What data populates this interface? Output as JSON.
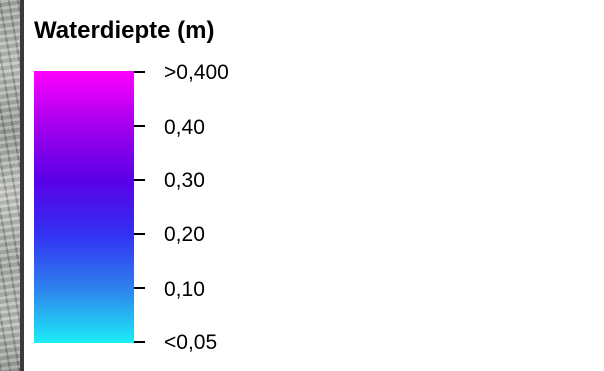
{
  "legend": {
    "title": "Waterdiepte (m)",
    "ramp_colors": [
      "#ff00ff",
      "#a400ee",
      "#5a00e6",
      "#3231f2",
      "#2e81ee",
      "#1cedf5"
    ],
    "labels": [
      ">0,400",
      "0,40",
      "0,30",
      "0,20",
      "0,10",
      "<0,05"
    ]
  }
}
